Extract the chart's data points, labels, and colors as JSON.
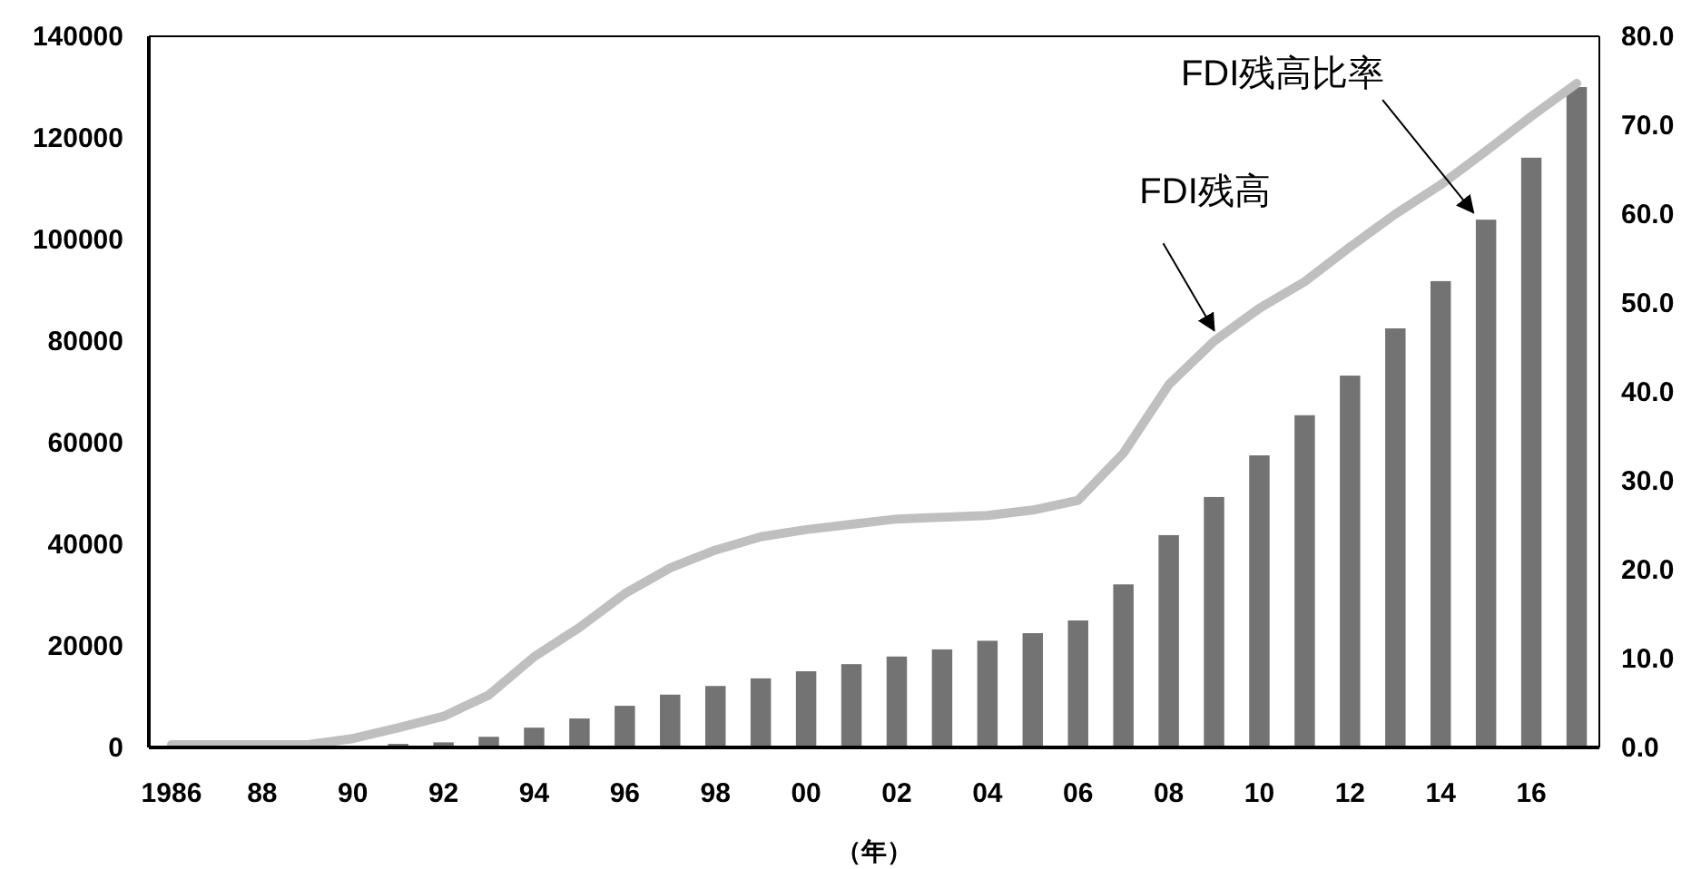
{
  "chart_data": {
    "type": "bar",
    "xlabel": "（年）",
    "categories": [
      "1986",
      null,
      "88",
      null,
      "90",
      null,
      "92",
      null,
      "94",
      null,
      "96",
      null,
      "98",
      null,
      "00",
      null,
      "02",
      null,
      "04",
      null,
      "06",
      null,
      "08",
      null,
      "10",
      null,
      "12",
      null,
      "14",
      null,
      "16",
      null
    ],
    "ylim": [
      0,
      140000
    ],
    "yticks": [
      0,
      20000,
      40000,
      60000,
      80000,
      100000,
      120000,
      140000
    ],
    "y2lim": [
      0,
      80
    ],
    "y2ticks": [
      {
        "value": 0,
        "label": "0.0"
      },
      {
        "value": 10,
        "label": "10.0"
      },
      {
        "value": 20,
        "label": "20.0"
      },
      {
        "value": 30,
        "label": "30.0"
      },
      {
        "value": 40,
        "label": "40.0"
      },
      {
        "value": 50,
        "label": "50.0"
      },
      {
        "value": 60,
        "label": "60.0"
      },
      {
        "value": 70,
        "label": "70.0"
      },
      {
        "value": 80,
        "label": "80.0"
      }
    ],
    "series": [
      {
        "name": "FDI残高比率",
        "color": "#737373",
        "values": [
          0,
          0,
          0,
          0,
          0,
          700,
          1000,
          2100,
          3900,
          5700,
          8200,
          10400,
          12100,
          13600,
          15000,
          16400,
          17900,
          19300,
          21000,
          22500,
          25000,
          32100,
          41800,
          49300,
          57500,
          65400,
          73200,
          82500,
          91800,
          103900,
          116100,
          130000
        ]
      },
      {
        "name": "FDI残高",
        "type": "line",
        "axis": "y2",
        "color": "#bfbfbf",
        "values": [
          0.3,
          0.3,
          0.3,
          0.3,
          1.0,
          2.2,
          3.5,
          5.9,
          10.2,
          13.5,
          17.3,
          20.2,
          22.2,
          23.7,
          24.5,
          25.1,
          25.7,
          25.9,
          26.1,
          26.7,
          27.8,
          33.1,
          40.8,
          45.7,
          49.4,
          52.4,
          56.3,
          60.0,
          63.3,
          67.1,
          71.0,
          74.7
        ]
      }
    ],
    "legend": false,
    "grid": false
  }
}
